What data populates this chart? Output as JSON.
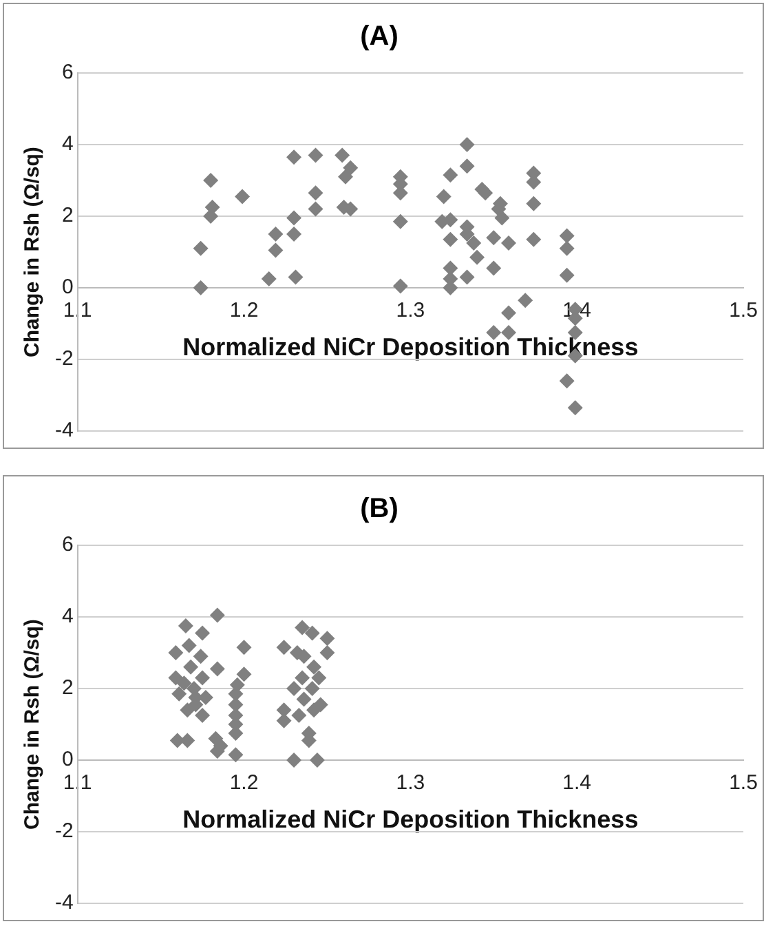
{
  "chart_data": [
    {
      "type": "scatter",
      "title": "(A)",
      "xlabel": "Normalized NiCr Deposition Thickness",
      "ylabel": "Change in Rsh (Ω/sq)",
      "xlim": [
        1.1,
        1.5
      ],
      "xticks": [
        1.1,
        1.2,
        1.3,
        1.4,
        1.5
      ],
      "ylim": [
        -4,
        6
      ],
      "yticks": [
        -4,
        -2,
        0,
        2,
        4,
        6
      ],
      "grid": "y",
      "marker": "diamond",
      "legend": false,
      "series": [
        {
          "color": "#808080",
          "x": [
            1.174,
            1.174,
            1.18,
            1.181,
            1.18,
            1.199,
            1.215,
            1.219,
            1.219,
            1.23,
            1.23,
            1.23,
            1.231,
            1.243,
            1.243,
            1.243,
            1.259,
            1.261,
            1.264,
            1.26,
            1.264,
            1.294,
            1.294,
            1.294,
            1.294,
            1.294,
            1.334,
            1.334,
            1.324,
            1.32,
            1.319,
            1.324,
            1.324,
            1.334,
            1.334,
            1.338,
            1.34,
            1.334,
            1.324,
            1.324,
            1.324,
            1.343,
            1.345,
            1.35,
            1.35,
            1.353,
            1.355,
            1.354,
            1.359,
            1.35,
            1.359,
            1.359,
            1.369,
            1.374,
            1.374,
            1.374,
            1.374,
            1.394,
            1.394,
            1.394,
            1.399,
            1.399,
            1.399,
            1.399,
            1.394,
            1.399
          ],
          "values": [
            0,
            1.1,
            3.0,
            2.25,
            2.0,
            2.55,
            0.25,
            1.5,
            1.05,
            3.65,
            1.95,
            1.5,
            0.3,
            3.7,
            2.65,
            2.2,
            3.7,
            3.1,
            3.35,
            2.25,
            2.2,
            3.1,
            2.9,
            2.65,
            1.85,
            0.05,
            4.0,
            3.4,
            3.15,
            2.55,
            1.85,
            1.9,
            1.35,
            1.7,
            1.5,
            1.25,
            0.85,
            0.3,
            0.55,
            0.0,
            0.25,
            2.75,
            2.65,
            1.4,
            0.55,
            2.2,
            1.95,
            2.35,
            1.25,
            -1.25,
            -1.25,
            -0.7,
            -0.35,
            3.2,
            2.95,
            2.35,
            1.35,
            1.45,
            1.1,
            0.35,
            -0.6,
            -0.85,
            -1.25,
            -1.9,
            -2.6,
            -3.35
          ]
        }
      ]
    },
    {
      "type": "scatter",
      "title": "(B)",
      "xlabel": "Normalized NiCr Deposition Thickness",
      "ylabel": "Change in Rsh (Ω/sq)",
      "xlim": [
        1.1,
        1.5
      ],
      "xticks": [
        1.1,
        1.2,
        1.3,
        1.4,
        1.5
      ],
      "ylim": [
        -4,
        6
      ],
      "yticks": [
        -4,
        -2,
        0,
        2,
        4,
        6
      ],
      "grid": "y",
      "marker": "diamond",
      "legend": false,
      "series": [
        {
          "color": "#808080",
          "x": [
            1.16,
            1.166,
            1.165,
            1.175,
            1.184,
            1.184,
            1.159,
            1.159,
            1.161,
            1.166,
            1.168,
            1.17,
            1.171,
            1.175,
            1.174,
            1.175,
            1.167,
            1.171,
            1.164,
            1.177,
            1.183,
            1.184,
            1.186,
            1.195,
            1.195,
            1.195,
            1.195,
            1.195,
            1.196,
            1.195,
            1.2,
            1.2,
            1.224,
            1.224,
            1.224,
            1.23,
            1.235,
            1.236,
            1.235,
            1.236,
            1.233,
            1.241,
            1.242,
            1.241,
            1.242,
            1.239,
            1.239,
            1.244,
            1.245,
            1.246,
            1.25,
            1.25,
            1.23,
            1.232
          ],
          "values": [
            0.55,
            0.55,
            3.75,
            3.55,
            4.05,
            2.55,
            3.0,
            2.3,
            1.85,
            1.4,
            2.6,
            2.0,
            1.55,
            1.25,
            2.9,
            2.3,
            3.2,
            1.75,
            2.15,
            1.75,
            0.6,
            0.25,
            0.4,
            0.15,
            0.75,
            1.25,
            1.55,
            1.85,
            2.1,
            1.0,
            3.15,
            2.4,
            3.15,
            1.4,
            1.1,
            0.0,
            3.7,
            2.9,
            2.3,
            1.7,
            1.25,
            3.55,
            2.6,
            2.0,
            1.4,
            0.75,
            0.55,
            0.0,
            2.3,
            1.55,
            3.4,
            3.0,
            2.0,
            3.0
          ]
        }
      ]
    }
  ]
}
